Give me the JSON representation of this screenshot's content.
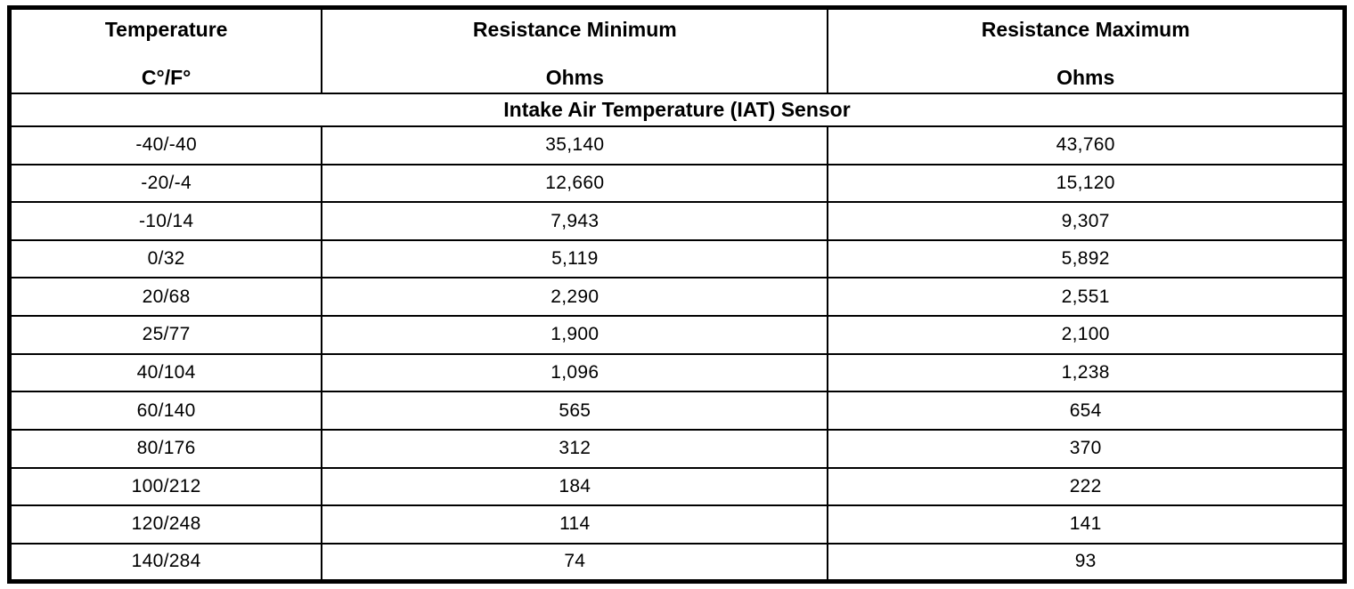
{
  "table": {
    "columns": [
      {
        "title": "Temperature",
        "subtitle": "C°/F°"
      },
      {
        "title": "Resistance Minimum",
        "subtitle": "Ohms"
      },
      {
        "title": "Resistance Maximum",
        "subtitle": "Ohms"
      }
    ],
    "section_title": "Intake Air Temperature (IAT) Sensor",
    "rows": [
      [
        "-40/-40",
        "35,140",
        "43,760"
      ],
      [
        "-20/-4",
        "12,660",
        "15,120"
      ],
      [
        "-10/14",
        "7,943",
        "9,307"
      ],
      [
        "0/32",
        "5,119",
        "5,892"
      ],
      [
        "20/68",
        "2,290",
        "2,551"
      ],
      [
        "25/77",
        "1,900",
        "2,100"
      ],
      [
        "40/104",
        "1,096",
        "1,238"
      ],
      [
        "60/140",
        "565",
        "654"
      ],
      [
        "80/176",
        "312",
        "370"
      ],
      [
        "100/212",
        "184",
        "222"
      ],
      [
        "120/248",
        "114",
        "141"
      ],
      [
        "140/284",
        "74",
        "93"
      ]
    ]
  },
  "chart_data": {
    "type": "table",
    "title": "Intake Air Temperature (IAT) Sensor",
    "columns": [
      "Temperature C°/F°",
      "Resistance Minimum Ohms",
      "Resistance Maximum Ohms"
    ],
    "rows": [
      [
        "-40/-40",
        "35,140",
        "43,760"
      ],
      [
        "-20/-4",
        "12,660",
        "15,120"
      ],
      [
        "-10/14",
        "7,943",
        "9,307"
      ],
      [
        "0/32",
        "5,119",
        "5,892"
      ],
      [
        "20/68",
        "2,290",
        "2,551"
      ],
      [
        "25/77",
        "1,900",
        "2,100"
      ],
      [
        "40/104",
        "1,096",
        "1,238"
      ],
      [
        "60/140",
        "565",
        "654"
      ],
      [
        "80/176",
        "312",
        "370"
      ],
      [
        "100/212",
        "184",
        "222"
      ],
      [
        "120/248",
        "114",
        "141"
      ],
      [
        "140/284",
        "74",
        "93"
      ]
    ]
  }
}
